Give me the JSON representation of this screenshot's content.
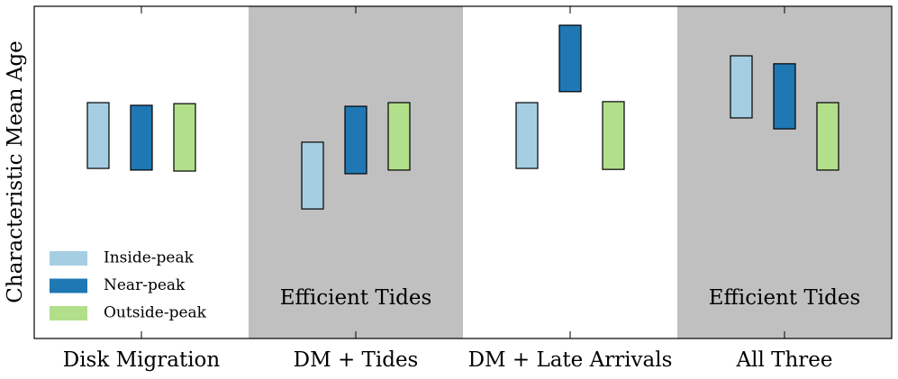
{
  "chart_data": {
    "type": "floating-bar",
    "ylabel": "Characteristic Mean Age",
    "categories": [
      "Disk Migration",
      "DM + Tides",
      "DM + Late Arrivals",
      "All Three"
    ],
    "shaded": [
      false,
      true,
      false,
      true
    ],
    "shade_color": "#c0c0c0",
    "panel_labels": [
      null,
      "Efficient Tides",
      null,
      "Efficient Tides"
    ],
    "ylim": [
      0,
      100
    ],
    "legend": "lower left",
    "series": [
      {
        "name": "Inside-peak",
        "color": "#a6cee3",
        "low": [
          51.2,
          39.0,
          51.2,
          66.4
        ],
        "high": [
          71.0,
          59.1,
          71.0,
          85.1
        ]
      },
      {
        "name": "Near-peak",
        "color": "#1f78b4",
        "low": [
          50.7,
          49.6,
          74.3,
          63.1
        ],
        "high": [
          70.2,
          69.9,
          94.3,
          82.7
        ]
      },
      {
        "name": "Outside-peak",
        "color": "#b2df8a",
        "low": [
          50.4,
          50.7,
          50.9,
          50.7
        ],
        "high": [
          70.7,
          71.0,
          71.3,
          71.0
        ]
      }
    ]
  }
}
